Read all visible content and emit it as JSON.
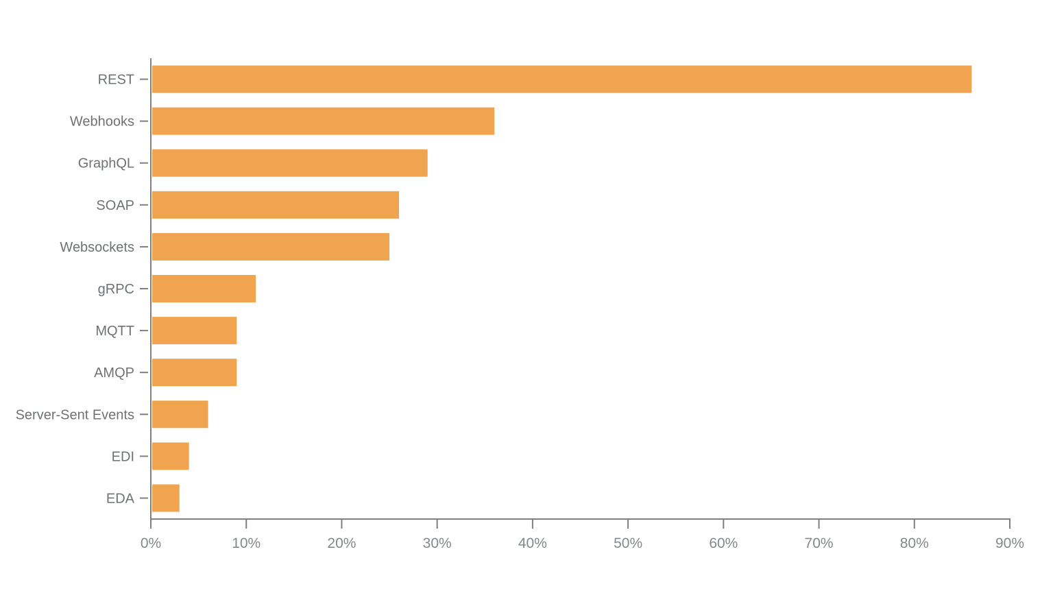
{
  "chart_data": {
    "type": "bar",
    "orientation": "horizontal",
    "title": "",
    "xlabel": "",
    "ylabel": "",
    "categories": [
      "REST",
      "Webhooks",
      "GraphQL",
      "SOAP",
      "Websockets",
      "gRPC",
      "MQTT",
      "AMQP",
      "Server-Sent Events",
      "EDI",
      "EDA"
    ],
    "values": [
      86,
      36,
      29,
      26,
      25,
      11,
      9,
      9,
      6,
      4,
      3
    ],
    "value_unit": "%",
    "xlim": [
      0,
      90
    ],
    "x_ticks": [
      0,
      10,
      20,
      30,
      40,
      50,
      60,
      70,
      80,
      90
    ],
    "x_tick_labels": [
      "0%",
      "10%",
      "20%",
      "30%",
      "40%",
      "50%",
      "60%",
      "70%",
      "80%",
      "90%"
    ],
    "grid": false,
    "legend": false,
    "colors": {
      "bar_fill": "#F0A44F",
      "axis_line": "#7F7F7F",
      "category_label": "#6F7275",
      "tick_label": "#85888B",
      "background": "#FFFFFF"
    }
  }
}
